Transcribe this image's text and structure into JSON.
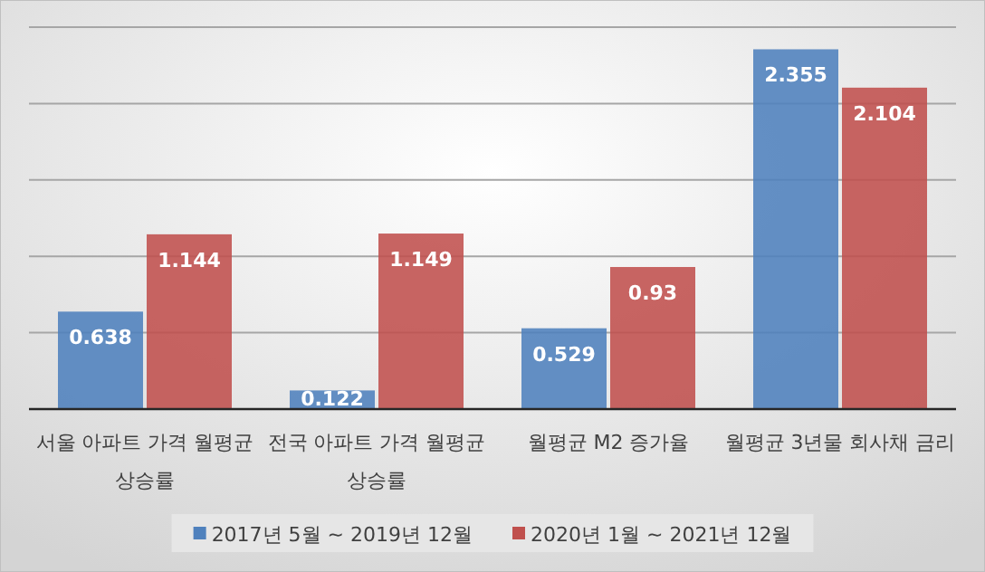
{
  "chart_data": {
    "type": "bar",
    "categories": [
      "서울 아파트 가격 월평균 상승률",
      "전국 아파트 가격 월평균 상승률",
      "월평균 M2 증가율",
      "월평균 3년물 회사채 금리"
    ],
    "series": [
      {
        "name": "2017년 5월 ~ 2019년 12월",
        "color": "#4f81bd",
        "values": [
          0.638,
          0.122,
          0.529,
          2.355
        ]
      },
      {
        "name": "2020년 1월 ~ 2021년 12월",
        "color": "#c0504d",
        "values": [
          1.144,
          1.149,
          0.93,
          2.104
        ]
      }
    ],
    "ylim": [
      0,
      2.5
    ],
    "yticks": [
      {
        "value": 0,
        "label": null
      },
      {
        "value": 0.5,
        "label": null
      },
      {
        "value": 1,
        "label": null
      },
      {
        "value": 1.5,
        "label": null
      },
      {
        "value": 2,
        "label": null
      },
      {
        "value": 2.5,
        "label": null
      }
    ],
    "grid": "y",
    "data_labels": true,
    "legend": "bottom",
    "tick_labels": "x"
  }
}
